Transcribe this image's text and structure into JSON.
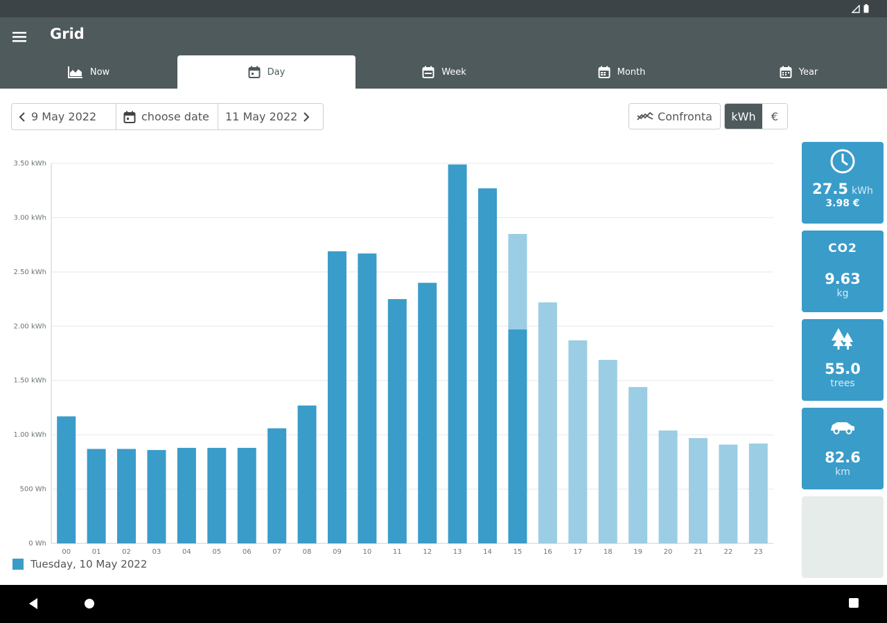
{
  "app": {
    "title": "Grid"
  },
  "tabs": [
    {
      "label": "Now",
      "icon": "area-chart-icon"
    },
    {
      "label": "Day",
      "icon": "calendar-icon"
    },
    {
      "label": "Week",
      "icon": "calendar-icon"
    },
    {
      "label": "Month",
      "icon": "calendar-icon"
    },
    {
      "label": "Year",
      "icon": "calendar-icon"
    }
  ],
  "active_tab": "Day",
  "date_nav": {
    "prev_label": "9 May 2022",
    "choose_label": "choose date",
    "next_label": "11 May 2022"
  },
  "toolbar": {
    "compare_label": "Confronta",
    "unit_kwh": "kWh",
    "unit_eur": "€",
    "active_unit": "kWh"
  },
  "chart_data": {
    "type": "bar",
    "categories": [
      "00",
      "01",
      "02",
      "03",
      "04",
      "05",
      "06",
      "07",
      "08",
      "09",
      "10",
      "11",
      "12",
      "13",
      "14",
      "15",
      "16",
      "17",
      "18",
      "19",
      "20",
      "21",
      "22",
      "23"
    ],
    "series": [
      {
        "name": "Tuesday, 10 May 2022",
        "values": [
          1.17,
          0.87,
          0.87,
          0.86,
          0.88,
          0.88,
          0.88,
          1.06,
          1.27,
          2.69,
          2.67,
          2.25,
          2.4,
          3.49,
          3.27,
          1.97,
          null,
          null,
          null,
          null,
          null,
          null,
          null,
          null
        ]
      },
      {
        "values": [
          null,
          null,
          null,
          null,
          null,
          null,
          null,
          null,
          null,
          null,
          null,
          null,
          null,
          null,
          null,
          2.85,
          2.22,
          1.87,
          1.69,
          1.44,
          1.04,
          0.97,
          0.91,
          0.92
        ]
      }
    ],
    "y_tick_labels": [
      "0 Wh",
      "500 Wh",
      "1.00 kWh",
      "1.50 kWh",
      "2.00 kWh",
      "2.50 kWh",
      "3.00 kWh",
      "3.50 kWh"
    ],
    "ylim": [
      0,
      3.5
    ],
    "grid": true,
    "colors": {
      "current": "#3a9cc9",
      "comparison": "#9bcde4",
      "grid": "#e3e8ea"
    }
  },
  "legend": {
    "label": "Tuesday, 10 May 2022"
  },
  "summary": {
    "energy": {
      "value": "27.5",
      "unit": "kWh",
      "cost": "3.98 €",
      "icon": "clock-icon"
    },
    "co2": {
      "icon_label": "CO2",
      "value": "9.63",
      "unit": "kg",
      "icon": "co2-icon"
    },
    "trees": {
      "value": "55.0",
      "unit": "trees",
      "icon": "trees-icon"
    },
    "car": {
      "value": "82.6",
      "unit": "km",
      "icon": "car-icon"
    }
  }
}
